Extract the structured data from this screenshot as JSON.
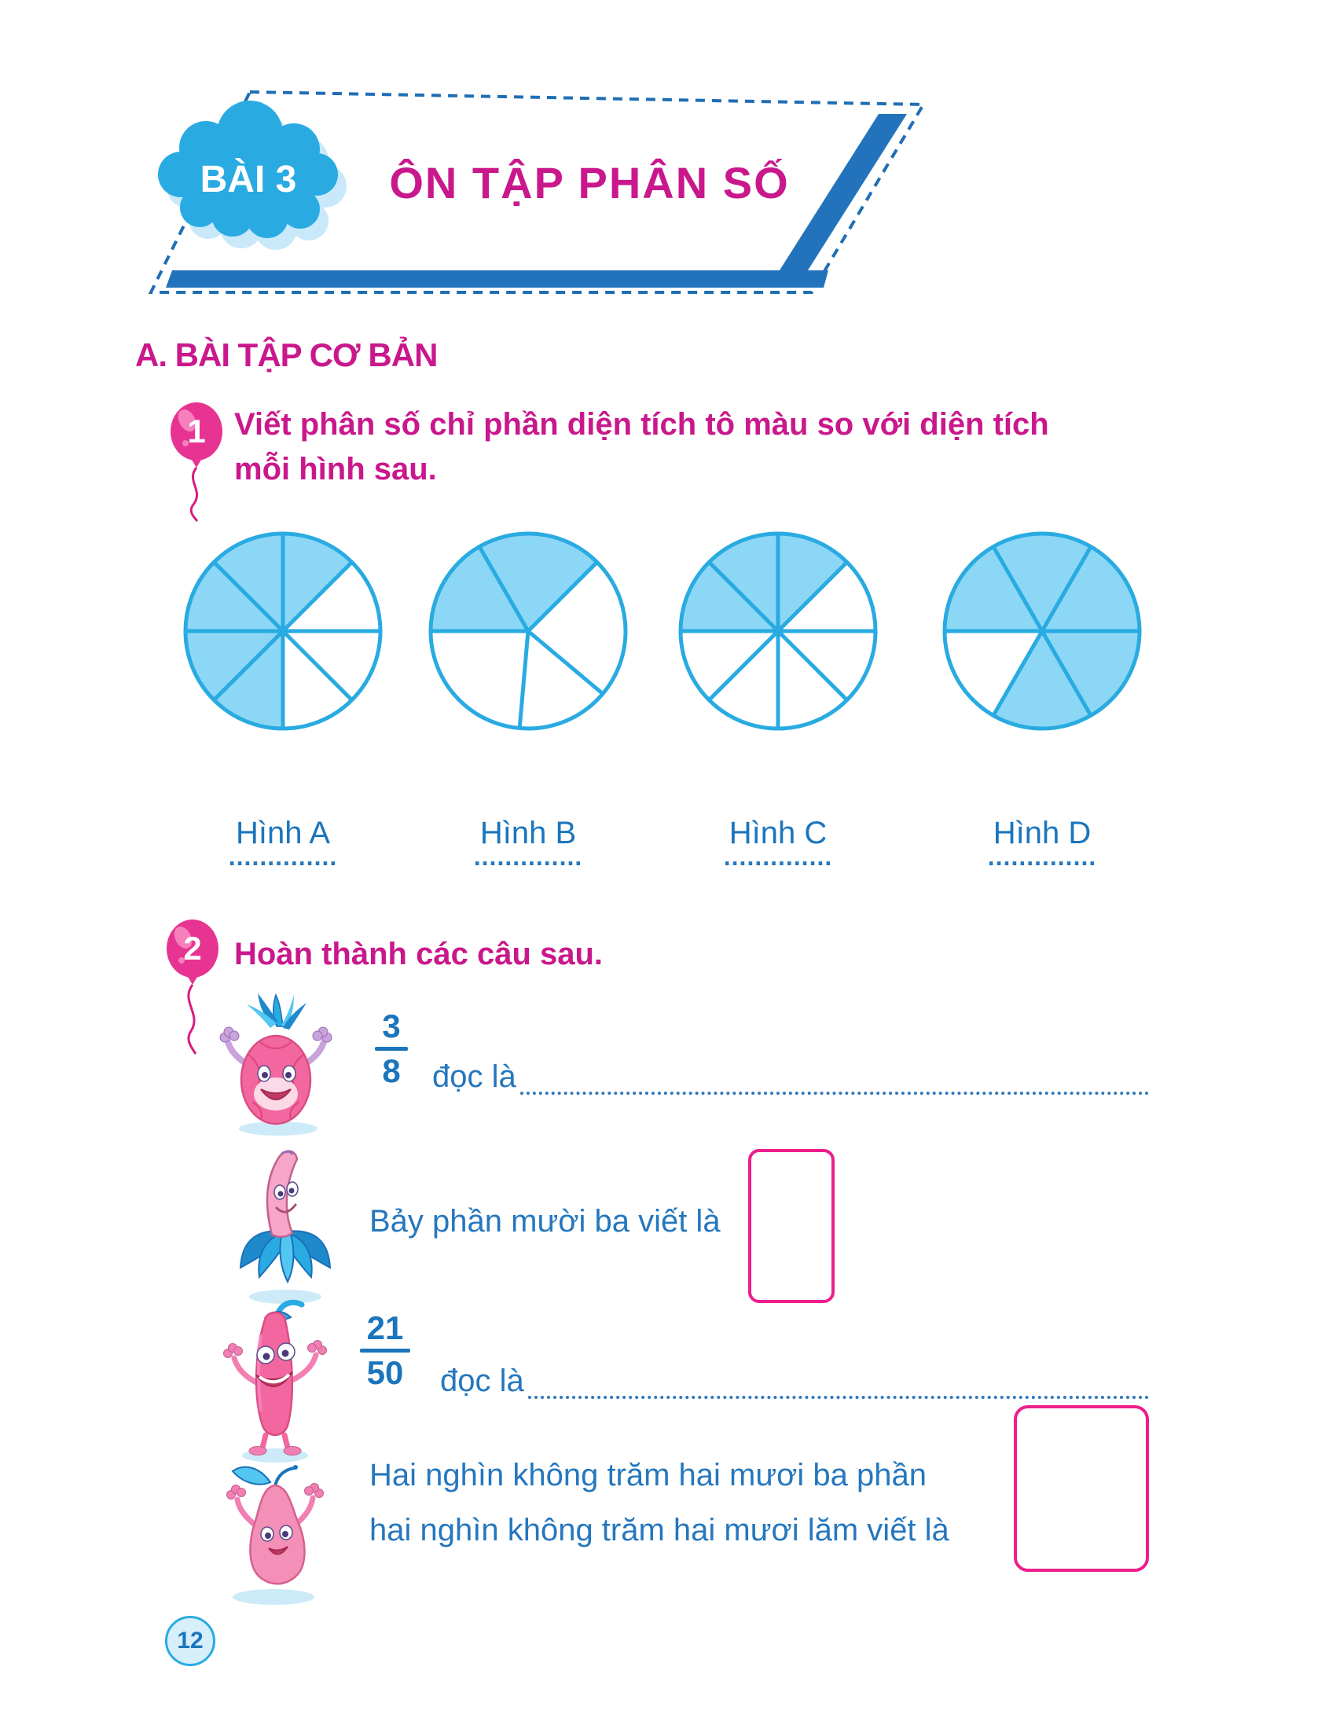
{
  "banner": {
    "lesson_label": "BÀI 3",
    "title": "ÔN TẬP PHÂN SỐ"
  },
  "section": {
    "heading": "A. BÀI TẬP CƠ BẢN"
  },
  "exercise1": {
    "number": "1",
    "prompt_line1": "Viết phân số chỉ phần diện tích tô màu so với diện tích",
    "prompt_line2": "mỗi hình sau.",
    "figures": [
      {
        "label": "Hình A",
        "total_parts": 8,
        "shaded_parts": 5,
        "boundaries_deg": [
          0,
          45,
          90,
          135,
          180,
          225,
          270,
          315
        ],
        "shaded_sectors": [
          0,
          4,
          5,
          6,
          7
        ],
        "answer_dots": ".............."
      },
      {
        "label": "Hình B",
        "total_parts": 5,
        "shaded_parts": 2,
        "boundaries_deg": [
          45,
          130,
          185,
          270,
          330
        ],
        "shaded_sectors": [
          3,
          4
        ],
        "answer_dots": ".............."
      },
      {
        "label": "Hình C",
        "total_parts": 8,
        "shaded_parts": 3,
        "boundaries_deg": [
          0,
          45,
          90,
          135,
          180,
          225,
          270,
          315
        ],
        "shaded_sectors": [
          0,
          6,
          7
        ],
        "answer_dots": ".............."
      },
      {
        "label": "Hình D",
        "total_parts": 6,
        "shaded_parts": 5,
        "boundaries_deg": [
          30,
          90,
          150,
          210,
          270,
          330
        ],
        "shaded_sectors": [
          0,
          1,
          2,
          4,
          5
        ],
        "answer_dots": ".............."
      }
    ]
  },
  "exercise2": {
    "number": "2",
    "prompt": "Hoàn thành các câu sau.",
    "items": [
      {
        "character": "dragon-fruit",
        "fraction_numerator": "3",
        "fraction_denominator": "8",
        "label": "đọc là",
        "answer_type": "dotted-line"
      },
      {
        "character": "banana",
        "label": "Bảy phần mười ba viết là",
        "answer_type": "box"
      },
      {
        "character": "chili",
        "fraction_numerator": "21",
        "fraction_denominator": "50",
        "label": "đọc là",
        "answer_type": "dotted-line"
      },
      {
        "character": "guava",
        "label_line1": "Hai nghìn không trăm hai mươi ba phần",
        "label_line2": "hai nghìn không trăm hai mươi lăm viết là",
        "answer_type": "box"
      }
    ]
  },
  "footer": {
    "page_number": "12"
  },
  "colors": {
    "heading_pink": "#C9188C",
    "pie_fill": "#8DD7F6",
    "pie_stroke": "#29ABE2",
    "banner_bar": "#2273BC",
    "dash_blue": "#1F6EB4",
    "text_blue": "#2577BE",
    "fraction_blue": "#1B75BC",
    "box_border_pink": "#ED1E8D",
    "balloon_pink": "#E73391"
  }
}
